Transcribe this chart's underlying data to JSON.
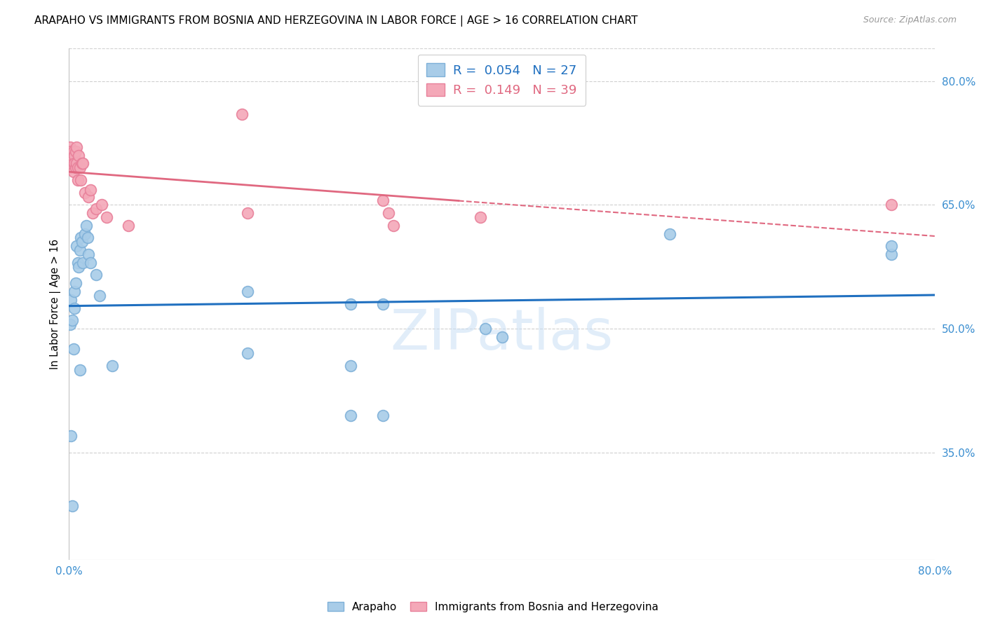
{
  "title": "ARAPAHO VS IMMIGRANTS FROM BOSNIA AND HERZEGOVINA IN LABOR FORCE | AGE > 16 CORRELATION CHART",
  "source": "Source: ZipAtlas.com",
  "ylabel": "In Labor Force | Age > 16",
  "xlim": [
    0.0,
    0.8
  ],
  "ylim": [
    0.22,
    0.84
  ],
  "xticks": [
    0.0,
    0.1,
    0.2,
    0.3,
    0.4,
    0.5,
    0.6,
    0.7,
    0.8
  ],
  "xticklabels": [
    "0.0%",
    "",
    "",
    "",
    "",
    "",
    "",
    "",
    "80.0%"
  ],
  "yticks_right": [
    0.35,
    0.5,
    0.65,
    0.8
  ],
  "yticklabels_right": [
    "35.0%",
    "50.0%",
    "65.0%",
    "80.0%"
  ],
  "watermark": "ZIPatlas",
  "arapaho_color": "#a8cce8",
  "bosnia_color": "#f4a8b8",
  "arapaho_edge_color": "#7eb0d8",
  "bosnia_edge_color": "#e8809a",
  "arapaho_line_color": "#2070c0",
  "bosnia_line_color": "#e06880",
  "legend_R_arapaho": "0.054",
  "legend_N_arapaho": "27",
  "legend_R_bosnia": "0.149",
  "legend_N_bosnia": "39",
  "arapaho_x": [
    0.001,
    0.002,
    0.003,
    0.004,
    0.005,
    0.005,
    0.006,
    0.007,
    0.008,
    0.009,
    0.01,
    0.011,
    0.012,
    0.013,
    0.015,
    0.016,
    0.017,
    0.018,
    0.02,
    0.025,
    0.028,
    0.165,
    0.29,
    0.555,
    0.76,
    0.76,
    0.003
  ],
  "arapaho_y": [
    0.505,
    0.535,
    0.51,
    0.475,
    0.545,
    0.525,
    0.555,
    0.6,
    0.58,
    0.575,
    0.595,
    0.61,
    0.605,
    0.58,
    0.615,
    0.625,
    0.61,
    0.59,
    0.58,
    0.565,
    0.54,
    0.545,
    0.53,
    0.615,
    0.59,
    0.6,
    0.285
  ],
  "arapaho_extra_x": [
    0.002,
    0.01,
    0.04,
    0.26,
    0.29,
    0.26,
    0.165,
    0.26,
    0.385,
    0.4
  ],
  "arapaho_extra_y": [
    0.37,
    0.45,
    0.455,
    0.395,
    0.395,
    0.455,
    0.47,
    0.53,
    0.5,
    0.49
  ],
  "bosnia_x": [
    0.001,
    0.001,
    0.001,
    0.002,
    0.002,
    0.002,
    0.003,
    0.003,
    0.004,
    0.004,
    0.004,
    0.005,
    0.005,
    0.006,
    0.006,
    0.007,
    0.007,
    0.008,
    0.008,
    0.009,
    0.01,
    0.011,
    0.012,
    0.013,
    0.015,
    0.018,
    0.02,
    0.022,
    0.025,
    0.03,
    0.035,
    0.055,
    0.16,
    0.165,
    0.29,
    0.295,
    0.3,
    0.38,
    0.76
  ],
  "bosnia_y": [
    0.698,
    0.71,
    0.72,
    0.705,
    0.695,
    0.715,
    0.7,
    0.71,
    0.695,
    0.715,
    0.69,
    0.71,
    0.7,
    0.715,
    0.695,
    0.7,
    0.72,
    0.695,
    0.68,
    0.71,
    0.695,
    0.68,
    0.7,
    0.7,
    0.665,
    0.66,
    0.668,
    0.64,
    0.645,
    0.65,
    0.635,
    0.625,
    0.76,
    0.64,
    0.655,
    0.64,
    0.625,
    0.635,
    0.65
  ],
  "background_color": "#ffffff",
  "grid_color": "#d0d0d0",
  "axis_color": "#3a8ed0",
  "title_fontsize": 11,
  "label_fontsize": 10.5,
  "tick_fontsize": 11,
  "legend_fontsize": 13
}
